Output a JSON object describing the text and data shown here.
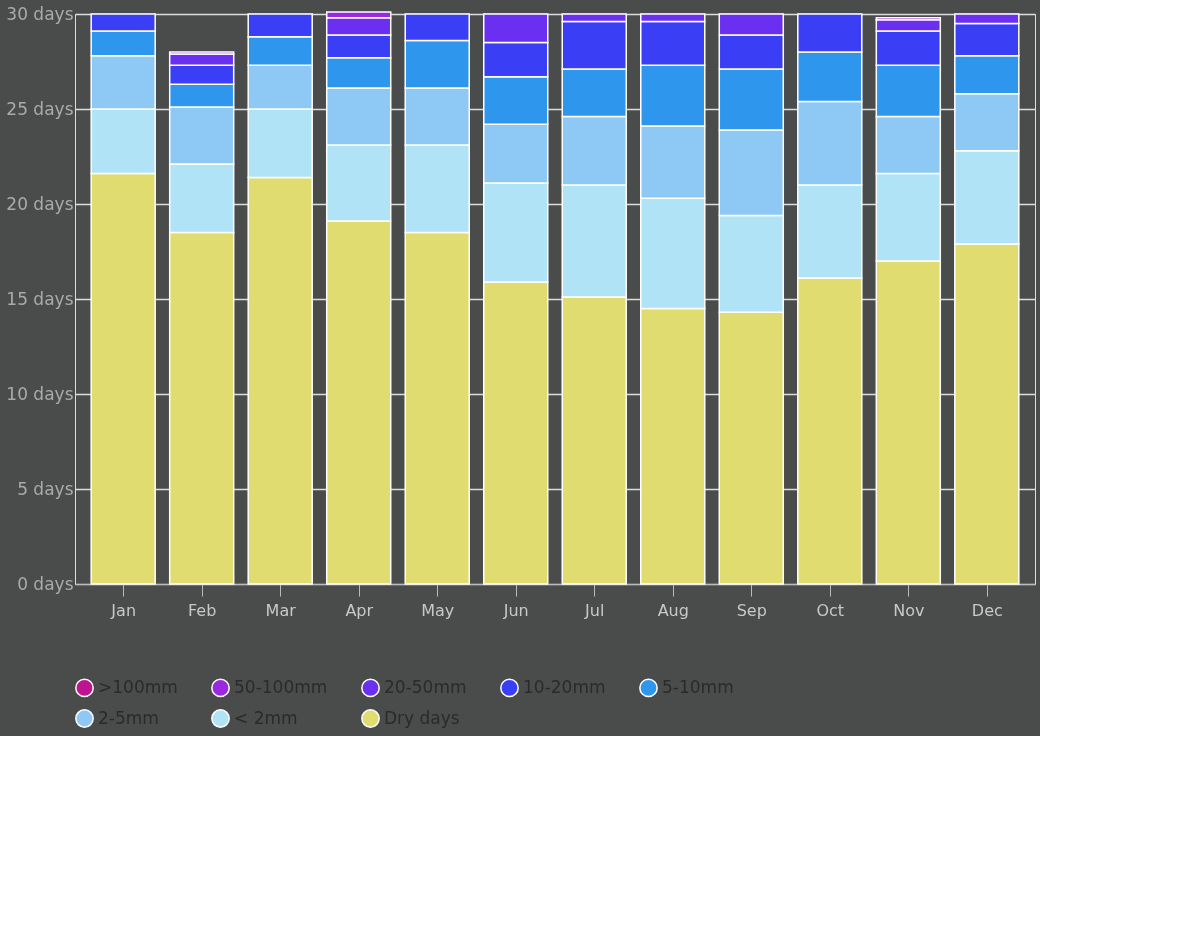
{
  "chart_data": {
    "type": "bar",
    "stacked": true,
    "categories": [
      "Jan",
      "Feb",
      "Mar",
      "Apr",
      "May",
      "Jun",
      "Jul",
      "Aug",
      "Sep",
      "Oct",
      "Nov",
      "Dec"
    ],
    "series": [
      {
        "name": "Dry days",
        "color": "#e0dc70",
        "values": [
          21.6,
          18.5,
          21.4,
          19.1,
          18.5,
          15.9,
          15.1,
          14.5,
          14.3,
          16.1,
          17.0,
          17.9
        ]
      },
      {
        "name": "< 2mm",
        "color": "#b0e3f5",
        "values": [
          3.4,
          3.6,
          3.6,
          4.0,
          4.6,
          5.2,
          5.9,
          5.8,
          5.1,
          4.9,
          4.6,
          4.9
        ]
      },
      {
        "name": "2-5mm",
        "color": "#8ec8f5",
        "values": [
          2.8,
          3.0,
          2.3,
          3.0,
          3.0,
          3.1,
          3.6,
          3.8,
          4.5,
          4.4,
          3.0,
          3.0
        ]
      },
      {
        "name": "5-10mm",
        "color": "#2f96ee",
        "values": [
          1.3,
          1.2,
          1.5,
          1.6,
          2.5,
          2.5,
          2.5,
          3.2,
          3.2,
          2.6,
          2.7,
          2.0
        ]
      },
      {
        "name": "10-20mm",
        "color": "#3a3ff5",
        "values": [
          0.9,
          1.0,
          1.2,
          1.2,
          1.4,
          1.8,
          2.5,
          2.3,
          1.8,
          2.0,
          1.8,
          1.7
        ]
      },
      {
        "name": "20-50mm",
        "color": "#6a2ff0",
        "values": [
          0,
          0.6,
          0,
          0.9,
          0,
          1.5,
          0.4,
          0.4,
          1.1,
          0,
          0.6,
          0.5
        ]
      },
      {
        "name": "50-100mm",
        "color": "#9b27e0",
        "values": [
          0,
          0.1,
          0,
          0.3,
          0,
          0,
          0,
          0,
          0,
          0,
          0.1,
          0
        ]
      },
      {
        "name": ">100mm",
        "color": "#c0138f",
        "values": [
          0,
          0,
          0,
          0,
          0,
          0,
          0,
          0,
          0,
          0,
          0,
          0
        ]
      }
    ],
    "ylim": [
      0,
      30
    ],
    "yticks": [
      {
        "value": 0,
        "label": "0 days"
      },
      {
        "value": 5,
        "label": "5 days"
      },
      {
        "value": 10,
        "label": "10 days"
      },
      {
        "value": 15,
        "label": "15 days"
      },
      {
        "value": 20,
        "label": "20 days"
      },
      {
        "value": 25,
        "label": "25 days"
      },
      {
        "value": 30,
        "label": "30 days"
      }
    ],
    "grid": "y",
    "legend": "bottom"
  }
}
